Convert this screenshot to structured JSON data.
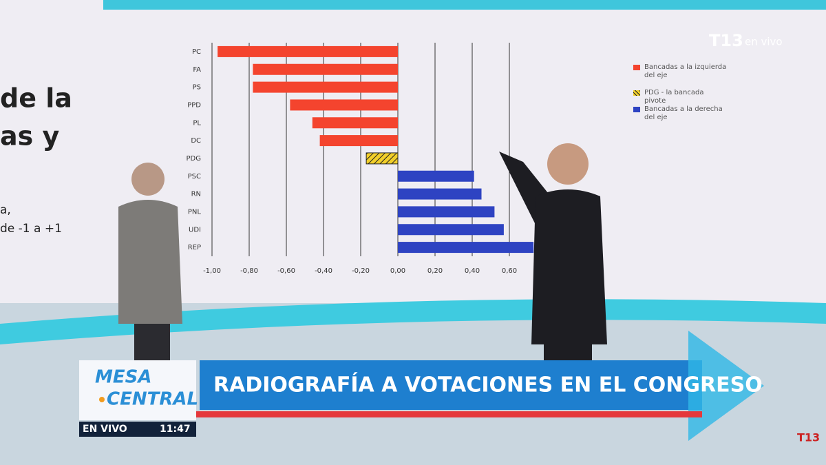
{
  "chart_data": {
    "type": "bar",
    "orientation": "horizontal",
    "categories": [
      "PC",
      "FA",
      "PS",
      "PPD",
      "PL",
      "DC",
      "PDG",
      "PSC",
      "RN",
      "PNL",
      "UDI",
      "REP"
    ],
    "series": [
      {
        "name": "Bancadas a la izquierda del eje",
        "color": "#f4442e",
        "values": [
          -0.97,
          -0.78,
          -0.78,
          -0.58,
          -0.46,
          -0.42,
          null,
          null,
          null,
          null,
          null,
          null
        ]
      },
      {
        "name": "PDG - la bancada pivote",
        "color": "#f2cf2a",
        "pattern": "hatch",
        "values": [
          null,
          null,
          null,
          null,
          null,
          null,
          -0.17,
          null,
          null,
          null,
          null,
          null
        ]
      },
      {
        "name": "Bancadas a la derecha del eje",
        "color": "#2e43c2",
        "values": [
          null,
          null,
          null,
          null,
          null,
          null,
          null,
          0.41,
          0.45,
          0.52,
          0.57,
          0.73
        ]
      }
    ],
    "xlim": [
      -1,
      1
    ],
    "xticks": [
      {
        "value": -1,
        "label": "-1,00"
      },
      {
        "value": -0.8,
        "label": "-0,80"
      },
      {
        "value": -0.6,
        "label": "-0,60"
      },
      {
        "value": -0.4,
        "label": "-0,40"
      },
      {
        "value": -0.2,
        "label": "-0,20"
      },
      {
        "value": 0,
        "label": "0,00"
      },
      {
        "value": 0.2,
        "label": "0,20"
      },
      {
        "value": 0.4,
        "label": "0,40"
      },
      {
        "value": 0.6,
        "label": "0,60"
      }
    ],
    "grid": true,
    "legend": "top-right"
  },
  "overlay": {
    "channel": "T13",
    "live": "en vivo",
    "side_text": [
      "de la",
      "as y",
      "a,",
      "de -1 a +1"
    ],
    "show": [
      "MESA",
      "CENTRAL"
    ],
    "headline": "RADIOGRAFÍA A VOTACIONES EN EL CONGRESO",
    "live_label": "EN VIVO",
    "time": "11:47",
    "corner_logo": "T13"
  }
}
